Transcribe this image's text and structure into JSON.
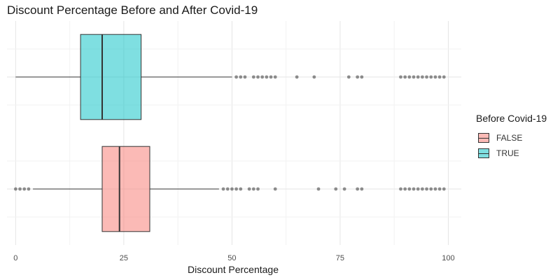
{
  "chart_data": {
    "type": "boxplot",
    "title": "Discount Percentage Before and After Covid-19",
    "xlabel": "Discount Percentage",
    "ylabel": "",
    "xlim": [
      -2,
      103
    ],
    "x_ticks": [
      0,
      25,
      50,
      75,
      100
    ],
    "grid": true,
    "orientation": "horizontal",
    "legend": {
      "title": "Before Covid-19",
      "position": "right",
      "entries": [
        {
          "label": "FALSE",
          "color": "#F8766D"
        },
        {
          "label": "TRUE",
          "color": "#00BFC4"
        }
      ]
    },
    "series": [
      {
        "name": "TRUE",
        "color": "#00BFC4",
        "whisker_low": 0,
        "q1": 15,
        "median": 20,
        "q3": 29,
        "whisker_high": 50,
        "outliers": [
          51,
          52,
          53,
          55,
          56,
          57,
          58,
          59,
          60,
          65,
          69,
          77,
          79,
          80,
          89,
          90,
          91,
          92,
          93,
          94,
          95,
          96,
          97,
          98,
          99
        ]
      },
      {
        "name": "FALSE",
        "color": "#F8766D",
        "whisker_low": 4,
        "q1": 20,
        "median": 24,
        "q3": 31,
        "whisker_high": 47,
        "outliers": [
          0,
          1,
          2,
          3,
          48,
          49,
          50,
          51,
          52,
          54,
          55,
          56,
          60,
          70,
          74,
          76,
          79,
          80,
          89,
          90,
          91,
          92,
          93,
          94,
          95,
          96,
          97,
          98,
          99
        ]
      }
    ]
  }
}
